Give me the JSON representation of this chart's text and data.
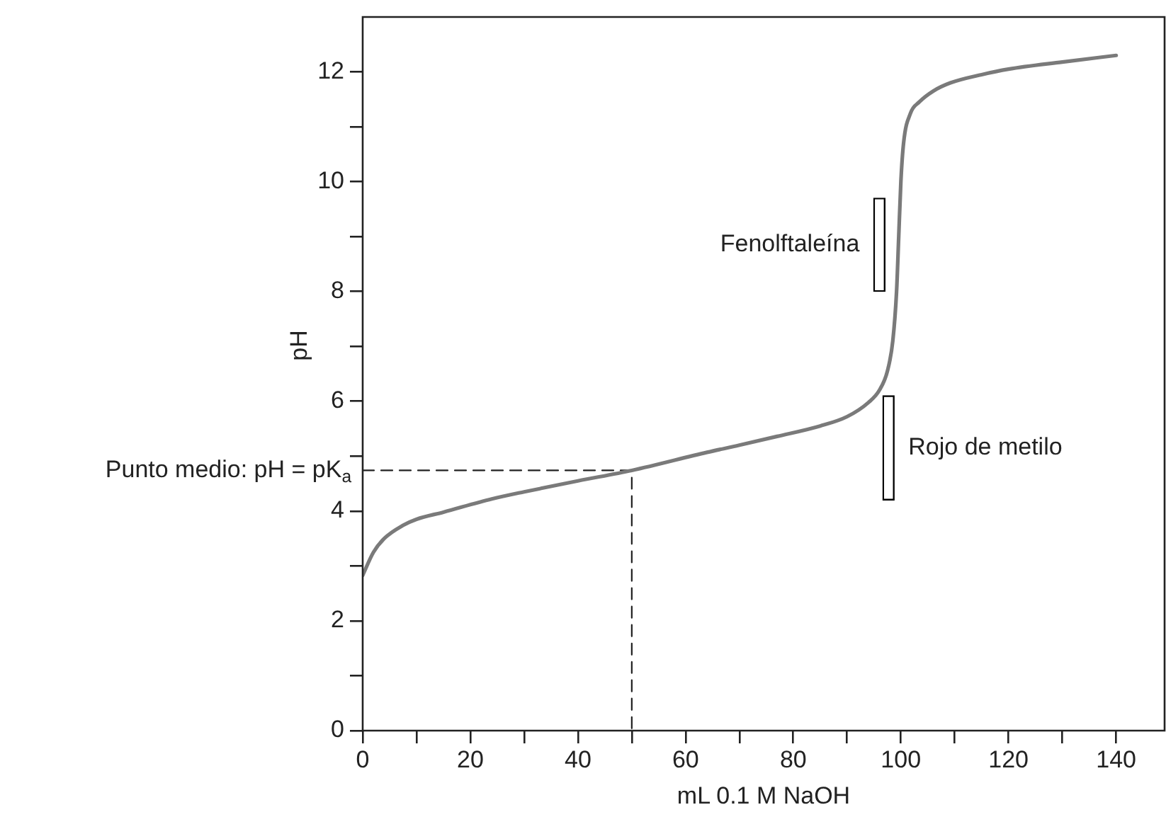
{
  "chart_data": {
    "type": "line",
    "xlabel": "mL 0.1 M NaOH",
    "ylabel": "pH",
    "xlim": [
      0,
      149
    ],
    "ylim": [
      0,
      13
    ],
    "xticks": [
      0,
      {
        "value": 10,
        "label": null
      },
      20,
      {
        "value": 30,
        "label": null
      },
      40,
      {
        "value": 50,
        "label": null
      },
      60,
      {
        "value": 70,
        "label": null
      },
      80,
      {
        "value": 90,
        "label": null
      },
      100,
      {
        "value": 110,
        "label": null
      },
      120,
      {
        "value": 130,
        "label": null
      },
      140
    ],
    "yticks": [
      0,
      {
        "value": 1,
        "label": null
      },
      2,
      {
        "value": 3,
        "label": null
      },
      4,
      {
        "value": 5,
        "label": null
      },
      6,
      {
        "value": 7,
        "label": null
      },
      8,
      {
        "value": 9,
        "label": null
      },
      10,
      {
        "value": 11,
        "label": null
      },
      12
    ],
    "grid": false,
    "legend": false,
    "marker": "none",
    "line_style": "solid",
    "series": [
      {
        "color": "#7a7a7a",
        "x": [
          0,
          2,
          4,
          7.5,
          10,
          15,
          24,
          30,
          40,
          50,
          64,
          70,
          77,
          85,
          90,
          94,
          96,
          97.5,
          98.5,
          99.2,
          99.6,
          100,
          100.5,
          101.8,
          103.4,
          106,
          109.2,
          115,
          120,
          130,
          140
        ],
        "values": [
          2.83,
          3.25,
          3.5,
          3.74,
          3.85,
          3.98,
          4.22,
          4.35,
          4.55,
          4.74,
          5.07,
          5.2,
          5.36,
          5.55,
          5.72,
          5.98,
          6.2,
          6.55,
          7.1,
          8.0,
          9.0,
          10.0,
          10.7,
          11.25,
          11.45,
          11.65,
          11.8,
          11.95,
          12.05,
          12.18,
          12.3
        ]
      },
      {
        "type": "line",
        "color": "#222222",
        "line_style": "dashed",
        "x": [
          0,
          50,
          50
        ],
        "values": [
          4.74,
          4.74,
          0
        ]
      },
      {
        "type": "bar",
        "name": "Fenolftaleína",
        "color": "#ffffff",
        "x": [
          96
        ],
        "base": [
          8.0
        ],
        "values": [
          1.7
        ]
      },
      {
        "type": "bar",
        "name": "Rojo de metilo",
        "color": "#ffffff",
        "x": [
          97.7
        ],
        "base": [
          4.2
        ],
        "values": [
          1.9
        ]
      }
    ],
    "annotations": [
      {
        "text": "Punto medio: pH = pK$_{a}$",
        "x": 0,
        "y": 4.74
      }
    ]
  }
}
